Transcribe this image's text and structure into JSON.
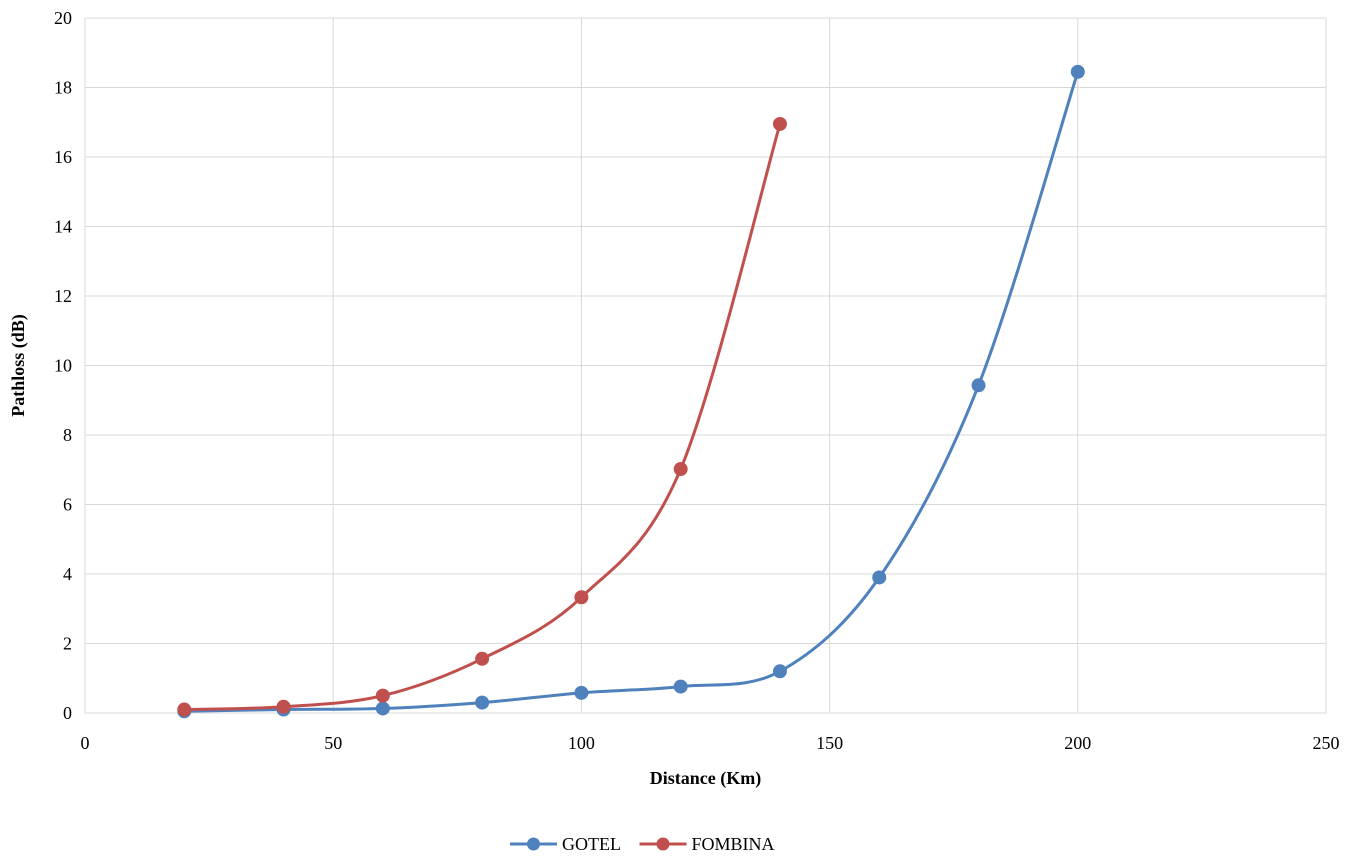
{
  "chart_data": {
    "type": "line",
    "title": "",
    "xlabel": "Distance (Km)",
    "ylabel": "Pathloss (dB)",
    "xlim": [
      0,
      250
    ],
    "ylim": [
      0,
      20
    ],
    "xticks": [
      0,
      50,
      100,
      150,
      200,
      250
    ],
    "yticks": [
      0,
      2,
      4,
      6,
      8,
      10,
      12,
      14,
      16,
      18,
      20
    ],
    "grid": true,
    "smooth": true,
    "legend_position": "bottom-center",
    "series": [
      {
        "name": "GOTEL",
        "color": "#4f81bd",
        "x": [
          20,
          40,
          60,
          80,
          100,
          120,
          140,
          160,
          180,
          200
        ],
        "y": [
          0.05,
          0.1,
          0.13,
          0.3,
          0.58,
          0.76,
          1.2,
          3.9,
          9.43,
          18.45
        ]
      },
      {
        "name": "FOMBINA",
        "color": "#c0504d",
        "x": [
          20,
          40,
          60,
          80,
          100,
          120,
          140
        ],
        "y": [
          0.1,
          0.18,
          0.5,
          1.56,
          3.33,
          7.02,
          16.95
        ]
      }
    ]
  }
}
